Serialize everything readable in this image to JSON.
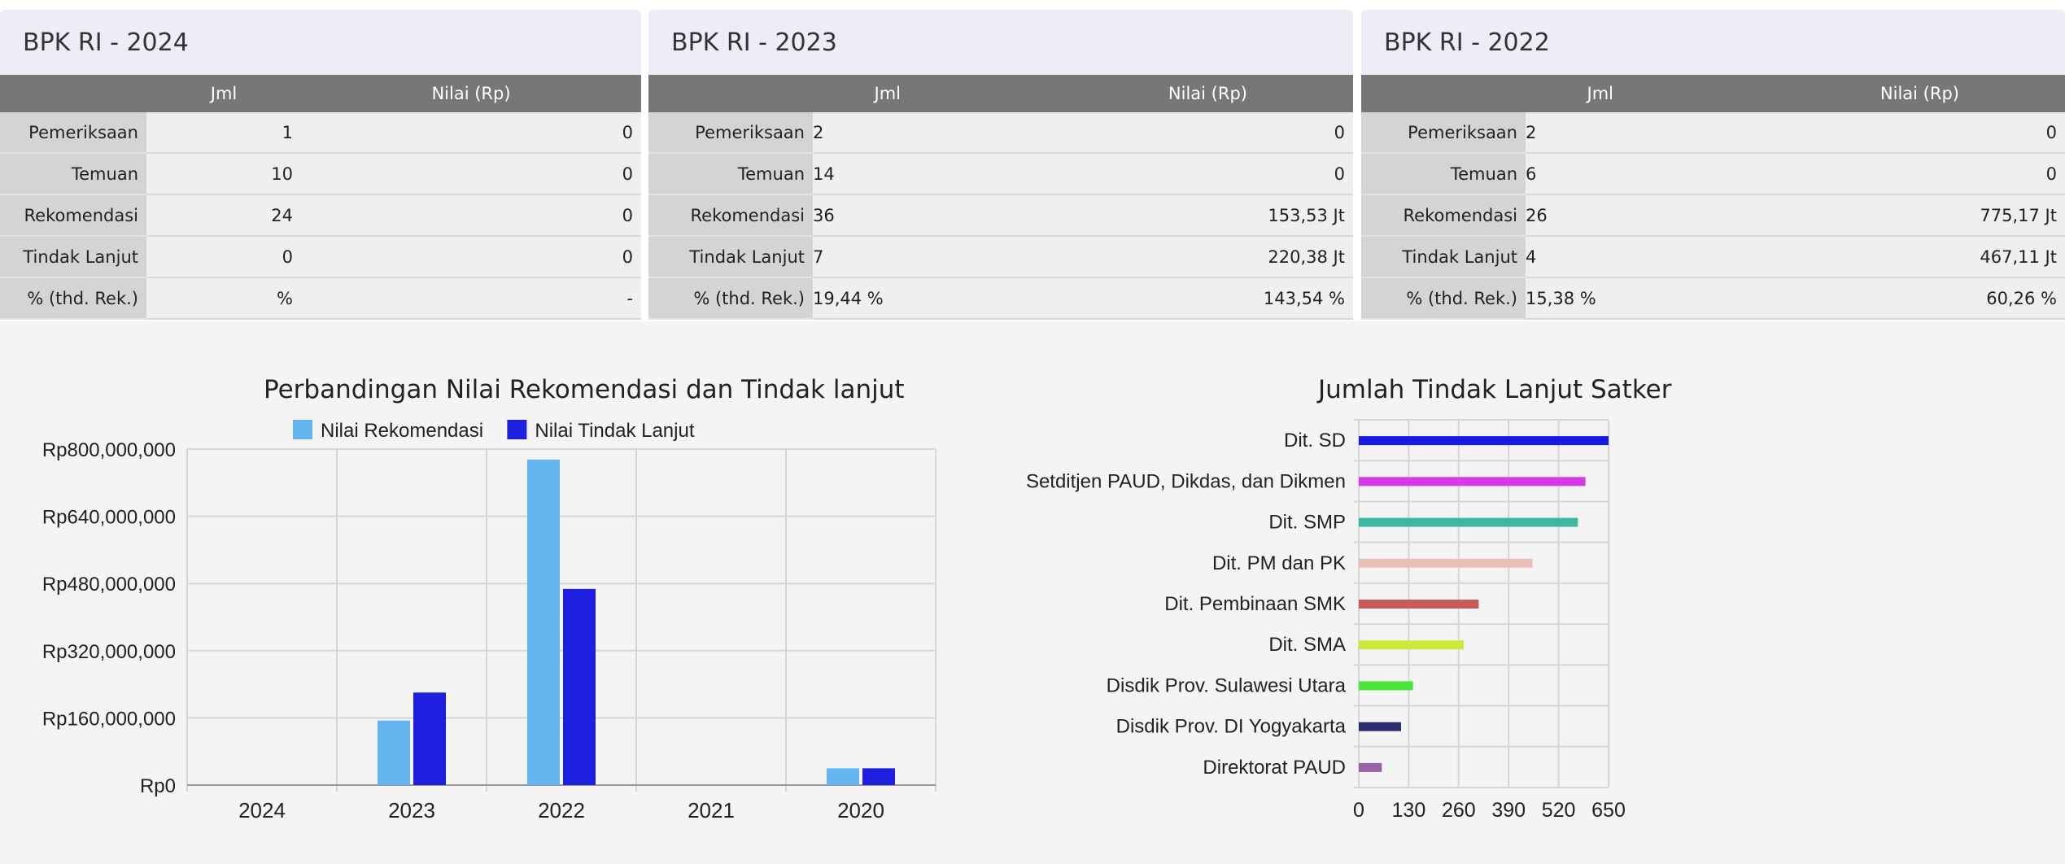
{
  "panels": [
    {
      "title": "BPK  RI - 2024",
      "col_jml": "Jml",
      "col_nilai": "Nilai (Rp)",
      "rows": [
        {
          "label": "Pemeriksaan",
          "jml": "1",
          "nilai": "0"
        },
        {
          "label": "Temuan",
          "jml": "10",
          "nilai": "0"
        },
        {
          "label": "Rekomendasi",
          "jml": "24",
          "nilai": "0"
        },
        {
          "label": "Tindak Lanjut",
          "jml": "0",
          "nilai": "0"
        },
        {
          "label": "% (thd. Rek.)",
          "jml": "%",
          "nilai": "-"
        }
      ]
    },
    {
      "title": "BPK  RI - 2023",
      "col_jml": "Jml",
      "col_nilai": "Nilai (Rp)",
      "rows": [
        {
          "label": "Pemeriksaan",
          "jml": "2",
          "nilai": "0"
        },
        {
          "label": "Temuan",
          "jml": "14",
          "nilai": "0"
        },
        {
          "label": "Rekomendasi",
          "jml": "36",
          "nilai": "153,53 Jt"
        },
        {
          "label": "Tindak Lanjut",
          "jml": "7",
          "nilai": "220,38 Jt"
        },
        {
          "label": "% (thd. Rek.)",
          "jml": "19,44 %",
          "nilai": "143,54 %"
        }
      ]
    },
    {
      "title": "BPK  RI - 2022",
      "col_jml": "Jml",
      "col_nilai": "Nilai (Rp)",
      "rows": [
        {
          "label": "Pemeriksaan",
          "jml": "2",
          "nilai": "0"
        },
        {
          "label": "Temuan",
          "jml": "6",
          "nilai": "0"
        },
        {
          "label": "Rekomendasi",
          "jml": "26",
          "nilai": "775,17 Jt"
        },
        {
          "label": "Tindak Lanjut",
          "jml": "4",
          "nilai": "467,11 Jt"
        },
        {
          "label": "% (thd. Rek.)",
          "jml": "15,38 %",
          "nilai": "60,26 %"
        }
      ]
    }
  ],
  "chart_data": [
    {
      "type": "bar",
      "title": "Perbandingan Nilai Rekomendasi dan Tindak lanjut",
      "categories": [
        "2024",
        "2023",
        "2022",
        "2021",
        "2020"
      ],
      "series": [
        {
          "name": "Nilai Rekomendasi",
          "color": "#64b5f0",
          "values": [
            0,
            153530000,
            775170000,
            0,
            40000000
          ]
        },
        {
          "name": "Nilai Tindak Lanjut",
          "color": "#1f1fe0",
          "values": [
            0,
            220380000,
            467110000,
            0,
            40000000
          ]
        }
      ],
      "ylim": [
        0,
        800000000
      ],
      "yticks": [
        0,
        160000000,
        320000000,
        480000000,
        640000000,
        800000000
      ],
      "ytick_labels": [
        "Rp0",
        "Rp160,000,000",
        "Rp320,000,000",
        "Rp480,000,000",
        "Rp640,000,000",
        "Rp800,000,000"
      ],
      "xlabel": "",
      "ylabel": "",
      "legend": "top-center",
      "grid": true
    },
    {
      "type": "bar",
      "orientation": "horizontal",
      "title": "Jumlah Tindak Lanjut Satker",
      "categories": [
        "Dit. SD",
        "Setditjen PAUD, Dikdas, dan Dikmen",
        "Dit. SMP",
        "Dit. PM dan PK",
        "Dit. Pembinaan SMK",
        "Dit. SMA",
        "Disdik Prov. Sulawesi Utara",
        "Disdik Prov. DI Yogyakarta",
        "Direktorat PAUD"
      ],
      "values": [
        650,
        590,
        570,
        452,
        312,
        273,
        141,
        110,
        60
      ],
      "colors": [
        "#1a1ae6",
        "#d63ae6",
        "#3ab8a0",
        "#e8c0b8",
        "#c85a5a",
        "#cce83a",
        "#4ae63a",
        "#2a2a6e",
        "#9a60a8"
      ],
      "xlim": [
        0,
        650
      ],
      "xticks": [
        0,
        130,
        260,
        390,
        520,
        650
      ],
      "xtick_labels": [
        "0",
        "130",
        "260",
        "390",
        "520",
        "650"
      ],
      "grid": true
    }
  ]
}
